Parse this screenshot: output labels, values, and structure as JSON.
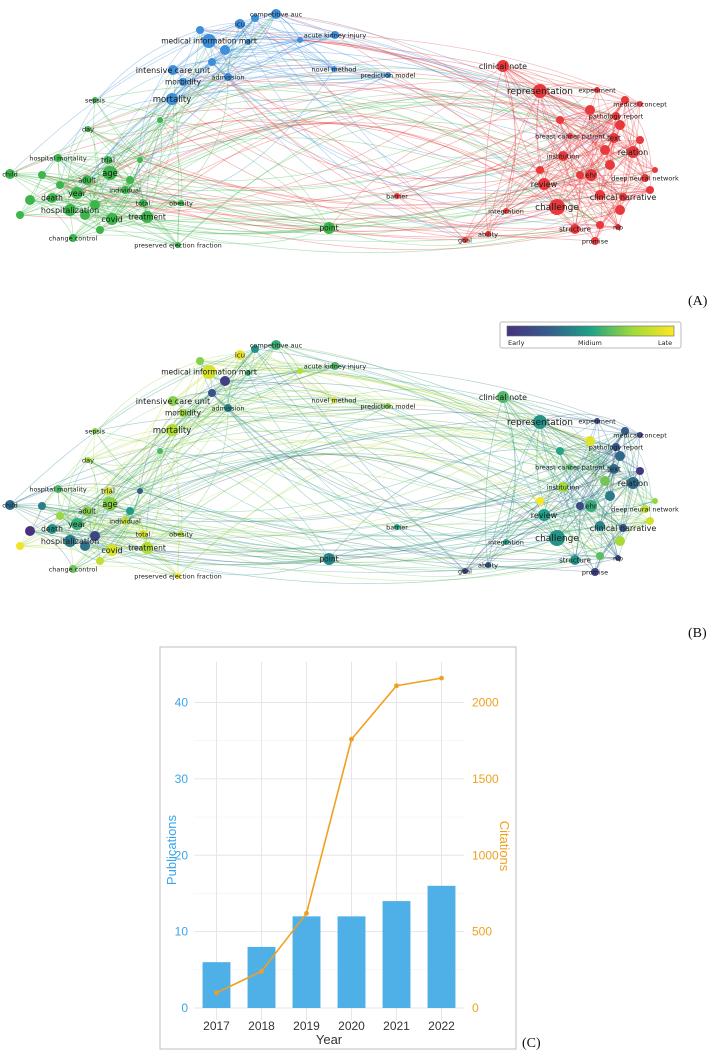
{
  "panels": {
    "a_label": "(A)",
    "b_label": "(B)",
    "c_label": "(C)"
  },
  "network": {
    "cluster_colors": {
      "red": "#e8383b",
      "blue": "#3d8fdc",
      "green": "#3cb54a"
    },
    "nodes": [
      {
        "id": "competitive auc",
        "cluster": "blue",
        "year": 0.55
      },
      {
        "id": "icu",
        "cluster": "blue",
        "year": 0.95
      },
      {
        "id": "medical information mart",
        "cluster": "blue",
        "year": 0.9
      },
      {
        "id": "acute kidney injury",
        "cluster": "blue",
        "year": 0.6
      },
      {
        "id": "intensive care unit",
        "cluster": "blue",
        "year": 0.7
      },
      {
        "id": "morbidity",
        "cluster": "blue",
        "year": 0.75
      },
      {
        "id": "admission",
        "cluster": "blue",
        "year": 0.4
      },
      {
        "id": "novel method",
        "cluster": "blue",
        "year": 0.9
      },
      {
        "id": "prediction model",
        "cluster": "blue",
        "year": 0.7
      },
      {
        "id": "mortality",
        "cluster": "blue",
        "year": 0.8
      },
      {
        "id": "clinical note",
        "cluster": "red",
        "year": 0.6
      },
      {
        "id": "representation",
        "cluster": "red",
        "year": 0.45
      },
      {
        "id": "experiment",
        "cluster": "red",
        "year": 0.15
      },
      {
        "id": "medical concept",
        "cluster": "red",
        "year": 0.1
      },
      {
        "id": "pathology report",
        "cluster": "red",
        "year": 0.2
      },
      {
        "id": "breast cancer patient",
        "cluster": "red",
        "year": 0.6
      },
      {
        "id": "text",
        "cluster": "red",
        "year": 0.3
      },
      {
        "id": "relation",
        "cluster": "red",
        "year": 0.3
      },
      {
        "id": "institution",
        "cluster": "red",
        "year": 0.75
      },
      {
        "id": "ehr",
        "cluster": "red",
        "year": 0.55
      },
      {
        "id": "deep neural network",
        "cluster": "red",
        "year": 0.85
      },
      {
        "id": "review",
        "cluster": "red",
        "year": 0.5
      },
      {
        "id": "clinical narrative",
        "cluster": "red",
        "year": 0.2
      },
      {
        "id": "challenge",
        "cluster": "red",
        "year": 0.45
      },
      {
        "id": "integration",
        "cluster": "red",
        "year": 0.5
      },
      {
        "id": "ability",
        "cluster": "red",
        "year": 0.25
      },
      {
        "id": "structure",
        "cluster": "red",
        "year": 0.45
      },
      {
        "id": "nlp",
        "cluster": "red",
        "year": 0.15
      },
      {
        "id": "goal",
        "cluster": "red",
        "year": 0.1
      },
      {
        "id": "promise",
        "cluster": "red",
        "year": 0.1
      },
      {
        "id": "barrier",
        "cluster": "red",
        "year": 0.5
      },
      {
        "id": "point",
        "cluster": "green",
        "year": 0.4
      },
      {
        "id": "sepsis",
        "cluster": "green",
        "year": 0.7
      },
      {
        "id": "day",
        "cluster": "green",
        "year": 0.75
      },
      {
        "id": "hospital mortality",
        "cluster": "green",
        "year": 0.6
      },
      {
        "id": "child",
        "cluster": "green",
        "year": 0.3
      },
      {
        "id": "trial",
        "cluster": "green",
        "year": 0.9
      },
      {
        "id": "age",
        "cluster": "green",
        "year": 0.7
      },
      {
        "id": "adult",
        "cluster": "green",
        "year": 0.7
      },
      {
        "id": "year",
        "cluster": "green",
        "year": 0.55
      },
      {
        "id": "individual",
        "cluster": "green",
        "year": 0.85
      },
      {
        "id": "death",
        "cluster": "green",
        "year": 0.45
      },
      {
        "id": "total",
        "cluster": "green",
        "year": 0.9
      },
      {
        "id": "obesity",
        "cluster": "green",
        "year": 0.8
      },
      {
        "id": "hospitalization",
        "cluster": "green",
        "year": 0.35
      },
      {
        "id": "covid",
        "cluster": "green",
        "year": 0.9
      },
      {
        "id": "treatment",
        "cluster": "green",
        "year": 0.8
      },
      {
        "id": "change control",
        "cluster": "green",
        "year": 0.65
      },
      {
        "id": "preserved ejection fraction",
        "cluster": "green",
        "year": 0.95
      }
    ],
    "legend": {
      "early": "Early",
      "medium": "Midium",
      "late": "Late"
    }
  },
  "chart_data": {
    "type": "bar",
    "categories": [
      "2017",
      "2018",
      "2019",
      "2020",
      "2021",
      "2022"
    ],
    "series": [
      {
        "name": "Publications",
        "kind": "bar",
        "axis": "left",
        "values": [
          6,
          8,
          12,
          12,
          14,
          16
        ]
      },
      {
        "name": "Citations",
        "kind": "line",
        "axis": "right",
        "values": [
          100,
          240,
          620,
          1760,
          2110,
          2160
        ]
      }
    ],
    "xlabel": "Year",
    "ylabel_left": "Publications",
    "ylabel_right": "Citations",
    "ylim_left": [
      0,
      44
    ],
    "ylim_right": [
      0,
      2200
    ],
    "yticks_left": [
      "0",
      "10",
      "20",
      "30",
      "40"
    ],
    "yticks_right": [
      "0",
      "500",
      "1000",
      "1500",
      "2000"
    ],
    "colors": {
      "bar": "#4fb0e8",
      "line": "#f0a020"
    }
  }
}
